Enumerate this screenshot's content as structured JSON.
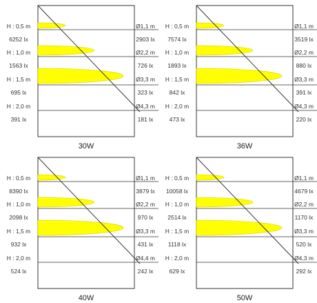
{
  "colors": {
    "beam": "#ffff00",
    "beam_edge": "#d9cf00",
    "line": "#333333",
    "frame": "#333333"
  },
  "panels": [
    {
      "title": "30W",
      "rows": [
        {
          "height": "H : 0,5 m",
          "lux_center": "6252 lx",
          "diameter": "Ø1,1 m",
          "lux_edge": "2903 lx"
        },
        {
          "height": "H : 1,0 m",
          "lux_center": "1563 lx",
          "diameter": "Ø2,2 m",
          "lux_edge": "726 lx"
        },
        {
          "height": "H : 1,5 m",
          "lux_center": "695 lx",
          "diameter": "Ø3,3 m",
          "lux_edge": "323 lx"
        },
        {
          "height": "H : 2,0 m",
          "lux_center": "391 lx",
          "diameter": "Ø4,3 m",
          "lux_edge": "181 lx"
        }
      ]
    },
    {
      "title": "36W",
      "rows": [
        {
          "height": "H : 0,5 m",
          "lux_center": "7574 lx",
          "diameter": "Ø1,1 m",
          "lux_edge": "3519 lx"
        },
        {
          "height": "H : 1,0 m",
          "lux_center": "1893 lx",
          "diameter": "Ø2,2 m",
          "lux_edge": "880 lx"
        },
        {
          "height": "H : 1,5 m",
          "lux_center": "842 lx",
          "diameter": "Ø3,3 m",
          "lux_edge": "391 lx"
        },
        {
          "height": "H : 2,0 m",
          "lux_center": "473 lx",
          "diameter": "Ø4,3 m",
          "lux_edge": "220 lx"
        }
      ]
    },
    {
      "title": "40W",
      "rows": [
        {
          "height": "H : 0,5 m",
          "lux_center": "8390 lx",
          "diameter": "Ø1,1 m",
          "lux_edge": "3879 lx"
        },
        {
          "height": "H : 1,0 m",
          "lux_center": "2098 lx",
          "diameter": "Ø2,2 m",
          "lux_edge": "970 lx"
        },
        {
          "height": "H : 1,5 m",
          "lux_center": "932 lx",
          "diameter": "Ø3,3 m",
          "lux_edge": "431 lx"
        },
        {
          "height": "H : 2,0 m",
          "lux_center": "524 lx",
          "diameter": "Ø4,4 m",
          "lux_edge": "242 lx"
        }
      ]
    },
    {
      "title": "50W",
      "rows": [
        {
          "height": "H : 0,5 m",
          "lux_center": "10058 lx",
          "diameter": "Ø1,1 m",
          "lux_edge": "4679 lx"
        },
        {
          "height": "H : 1,0 m",
          "lux_center": "2514 lx",
          "diameter": "Ø2,2 m",
          "lux_edge": "1170 lx"
        },
        {
          "height": "H : 1,5 m",
          "lux_center": "1118 lx",
          "diameter": "Ø3,3 m",
          "lux_edge": "520 lx"
        },
        {
          "height": "H : 2,0 m",
          "lux_center": "629 lx",
          "diameter": "Ø4,3 m",
          "lux_edge": "292 lx"
        }
      ]
    }
  ]
}
